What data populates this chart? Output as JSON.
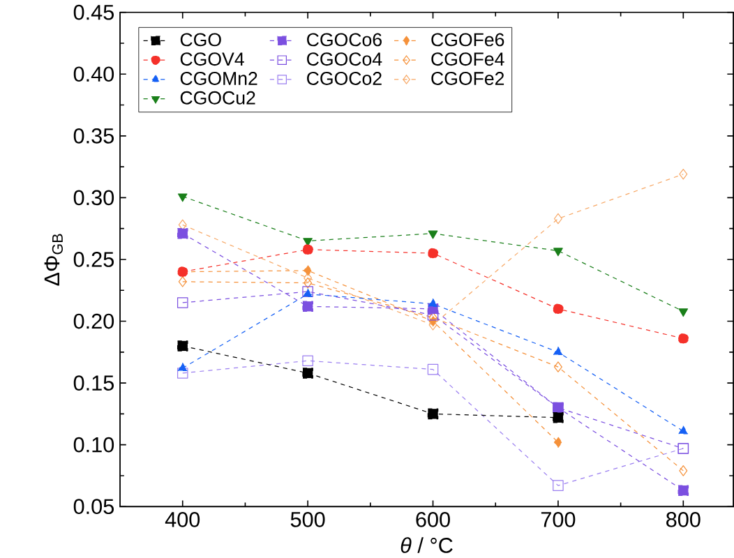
{
  "chart_data": {
    "type": "line",
    "xlabel": "*θ* / °C",
    "ylabel": "ΔΦ$_{GB}$",
    "x": [
      400,
      500,
      600,
      700,
      800
    ],
    "xlim": [
      350,
      840
    ],
    "xticks": [
      400,
      500,
      600,
      700,
      800
    ],
    "ylim": [
      0.05,
      0.45
    ],
    "yticks": [
      {
        "value": 0.05,
        "label": "0.05"
      },
      {
        "value": 0.1,
        "label": "0.10"
      },
      {
        "value": 0.15,
        "label": "0.15"
      },
      {
        "value": 0.2,
        "label": "0.20"
      },
      {
        "value": 0.25,
        "label": "0.25"
      },
      {
        "value": 0.3,
        "label": "0.30"
      },
      {
        "value": 0.35,
        "label": "0.35"
      },
      {
        "value": 0.4,
        "label": "0.40"
      },
      {
        "value": 0.45,
        "label": "0.45"
      }
    ],
    "legend": "top left",
    "line_style": "dashed",
    "grid": false,
    "series": [
      {
        "name": "CGO",
        "color": "#000000",
        "marker": "square",
        "values": [
          0.18,
          0.158,
          0.125,
          0.122,
          null
        ]
      },
      {
        "name": "CGOV4",
        "color": "#f5312a",
        "marker": "circle",
        "values": [
          0.24,
          0.258,
          0.255,
          0.21,
          0.186
        ]
      },
      {
        "name": "CGOMn2",
        "color": "#1560f5",
        "marker": "triangle",
        "values": [
          0.162,
          0.222,
          0.214,
          0.175,
          0.111
        ]
      },
      {
        "name": "CGOCu2",
        "color": "#1a7f1a",
        "marker": "triangle-down",
        "values": [
          0.301,
          0.265,
          0.271,
          0.257,
          0.208
        ]
      },
      {
        "name": "CGOCo6",
        "color": "#7b4fe0",
        "marker": "square",
        "values": [
          0.271,
          0.212,
          0.21,
          0.13,
          0.063
        ]
      },
      {
        "name": "CGOCo4",
        "color": "#7b4fe0",
        "marker": "square-open",
        "values": [
          0.215,
          0.224,
          0.205,
          0.13,
          0.097
        ]
      },
      {
        "name": "CGOCo2",
        "color": "#9b7ff0",
        "marker": "square-open",
        "values": [
          0.158,
          0.168,
          0.161,
          0.067,
          0.097
        ]
      },
      {
        "name": "CGOFe6",
        "color": "#f5913a",
        "marker": "diamond",
        "values": [
          0.24,
          0.241,
          0.2,
          0.102,
          null
        ]
      },
      {
        "name": "CGOFe4",
        "color": "#f5913a",
        "marker": "diamond-open",
        "values": [
          0.232,
          0.231,
          0.203,
          0.163,
          0.079
        ]
      },
      {
        "name": "CGOFe2",
        "color": "#f7a866",
        "marker": "diamond-open",
        "values": [
          0.278,
          0.235,
          0.197,
          0.283,
          0.319
        ]
      }
    ]
  }
}
